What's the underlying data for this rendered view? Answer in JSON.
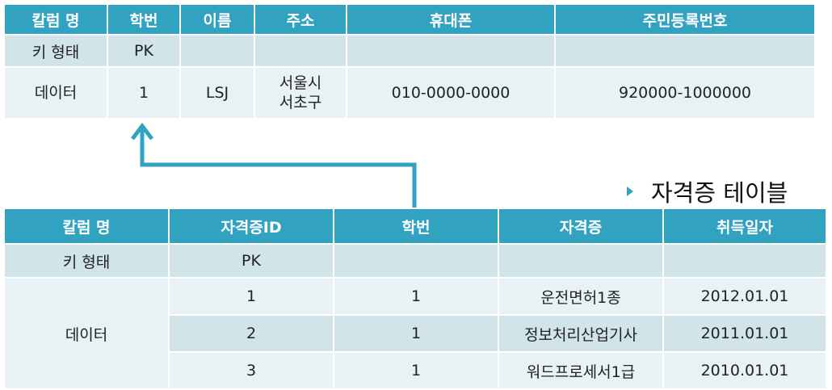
{
  "student_table": {
    "headers": [
      "칼럼 명",
      "학번",
      "이름",
      "주소",
      "휴대폰",
      "주민등록번호"
    ],
    "key_row": [
      "키 형태",
      "PK",
      "",
      "",
      "",
      ""
    ],
    "data_row": {
      "label": "데이터",
      "student_id": "1",
      "name": "LSJ",
      "address_line1": "서울시",
      "address_line2": "서초구",
      "phone": "010-0000-0000",
      "resident_number": "920000-1000000"
    }
  },
  "certificate_table": {
    "caption": "자격증 테이블",
    "headers": [
      "칼럼 명",
      "자격증ID",
      "학번",
      "자격증",
      "취득일자"
    ],
    "key_row": [
      "키 형태",
      "PK",
      "",
      "",
      ""
    ],
    "data_label": "데이터",
    "rows": [
      {
        "cert_id": "1",
        "student_id": "1",
        "certificate": "운전면허1종",
        "date": "2012.01.01"
      },
      {
        "cert_id": "2",
        "student_id": "1",
        "certificate": "정보처리산업기사",
        "date": "2011.01.01"
      },
      {
        "cert_id": "3",
        "student_id": "1",
        "certificate": "워드프로세서1급",
        "date": "2010.01.01"
      }
    ]
  },
  "colors": {
    "header": "#31a3c1",
    "row_dark": "#d0e4ea",
    "row_light": "#e8f1f4",
    "arrow": "#31a3c1"
  }
}
